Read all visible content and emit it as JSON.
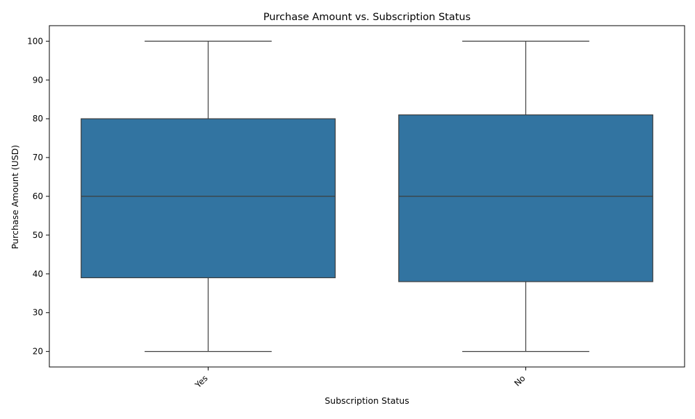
{
  "chart_data": {
    "type": "box",
    "title": "Purchase Amount vs. Subscription Status",
    "xlabel": "Subscription Status",
    "ylabel": "Purchase Amount (USD)",
    "ylim": [
      16,
      104
    ],
    "yticks": [
      20,
      30,
      40,
      50,
      60,
      70,
      80,
      90,
      100
    ],
    "categories": [
      "Yes",
      "No"
    ],
    "boxes": [
      {
        "category": "Yes",
        "min": 20,
        "q1": 39,
        "median": 60,
        "q3": 80,
        "max": 100
      },
      {
        "category": "No",
        "min": 20,
        "q1": 38,
        "median": 60,
        "q3": 81,
        "max": 100
      }
    ],
    "grid": false,
    "colors": {
      "box_fill": "#3274a1",
      "line": "#3d3d3d",
      "axis": "#000000"
    }
  }
}
